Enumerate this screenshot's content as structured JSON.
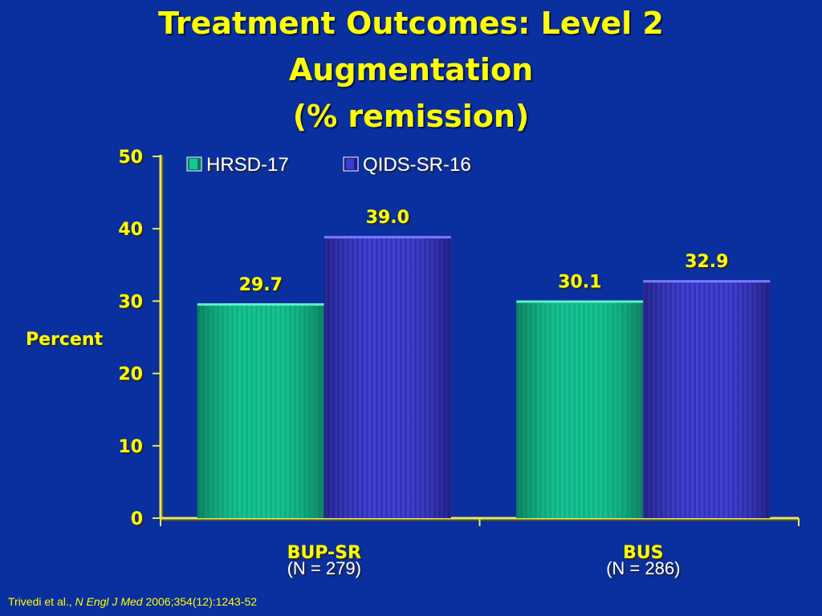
{
  "title_lines": [
    "Treatment Outcomes: Level 2",
    "Augmentation",
    "(% remission)"
  ],
  "citation": {
    "authors": "Trivedi et al., ",
    "journal": "N Engl J Med",
    "ref": " 2006;354(12):1243-52"
  },
  "colors": {
    "background": "#0a2f9e",
    "text": "#ffff00",
    "axis": "#e8e85a",
    "hrsd": "#14c896",
    "qids": "#3b3bd0"
  },
  "chart_data": {
    "type": "bar",
    "categories": [
      "BUP-SR",
      "BUS"
    ],
    "category_sublabels": [
      "(N = 279)",
      "(N = 286)"
    ],
    "series": [
      {
        "name": "HRSD-17",
        "values": [
          29.7,
          30.1
        ],
        "labels": [
          "29.7",
          "30.1"
        ]
      },
      {
        "name": "QIDS-SR-16",
        "values": [
          39.0,
          32.9
        ],
        "labels": [
          "39.0",
          "32.9"
        ]
      }
    ],
    "ylabel": "Percent",
    "xlabel": "",
    "ylim": [
      0,
      50
    ],
    "yticks": [
      0,
      10,
      20,
      30,
      40,
      50
    ],
    "grid": false,
    "legend_position": "top-left"
  }
}
